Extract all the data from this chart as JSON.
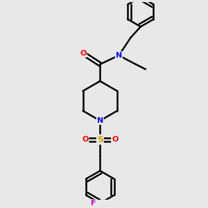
{
  "background_color": "#e8e8e8",
  "bond_color": "#000000",
  "bond_width": 1.8,
  "atom_colors": {
    "N": "#0000ff",
    "O": "#ff0000",
    "S": "#ccaa00",
    "F": "#cc00cc",
    "C": "#000000"
  },
  "figsize": [
    3.0,
    3.0
  ],
  "dpi": 100,
  "xlim": [
    0,
    10
  ],
  "ylim": [
    0,
    10
  ]
}
